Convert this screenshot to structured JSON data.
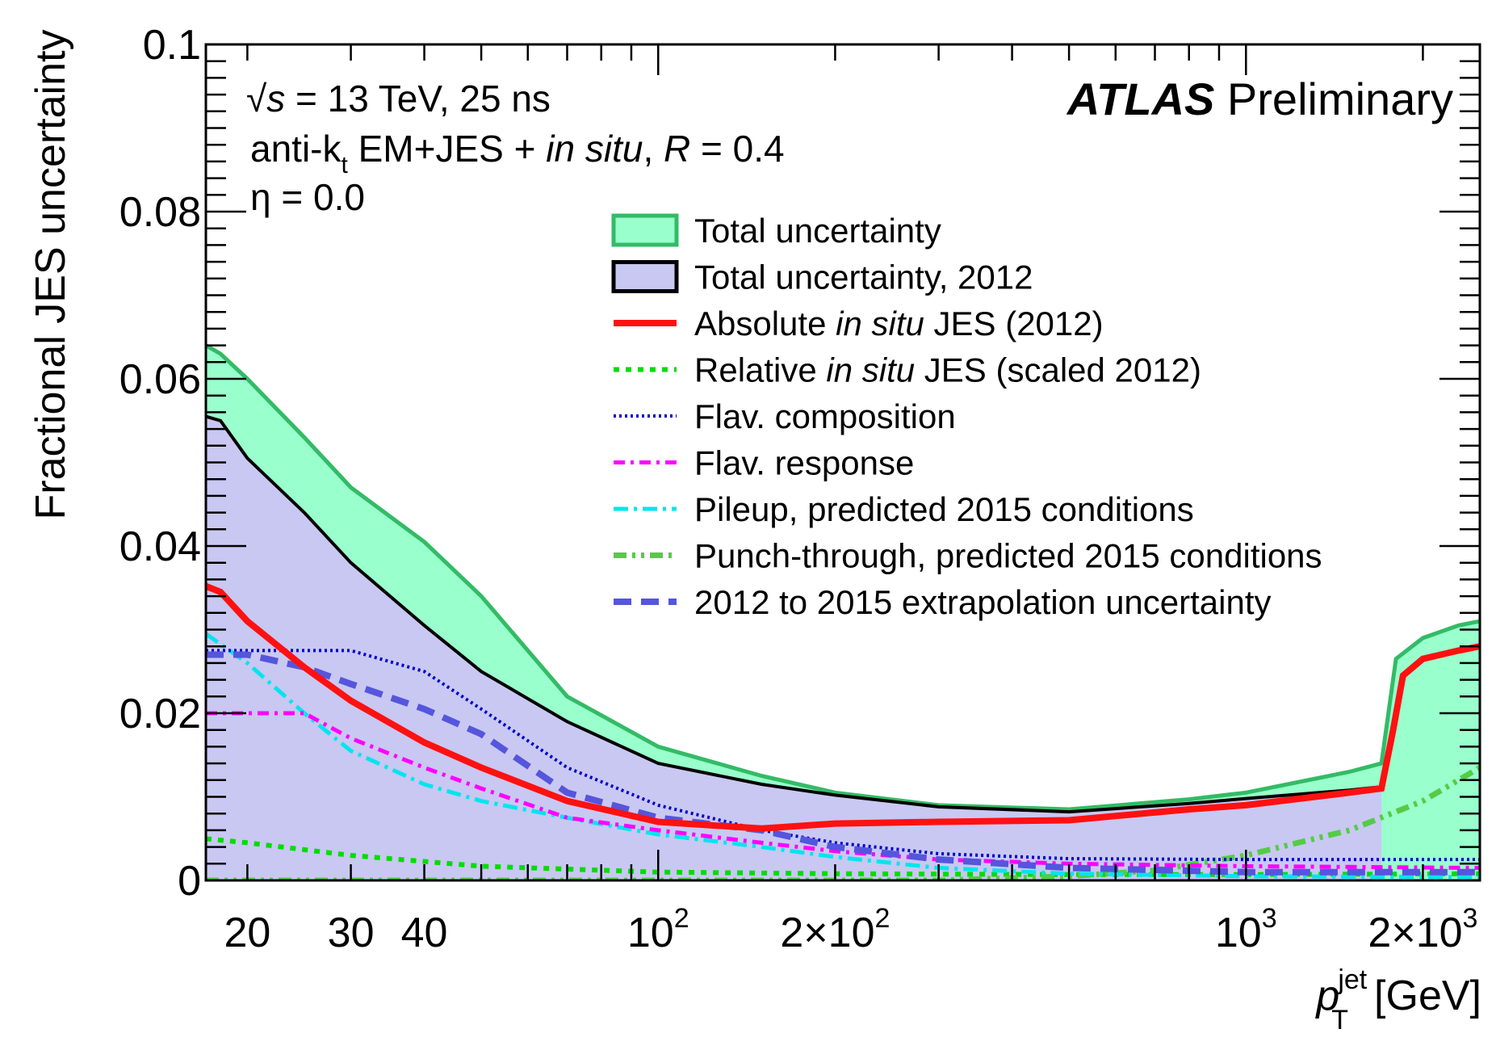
{
  "chart_data": {
    "type": "area",
    "title": "",
    "ylabel": "Fractional JES uncertainty",
    "xlabel": {
      "symbol": "p",
      "sub": "T",
      "sup": "jet",
      "unit": "[GeV]"
    },
    "x_scale": "log",
    "xlim": [
      17,
      2500
    ],
    "ylim": [
      0,
      0.1
    ],
    "y_ticks": [
      {
        "value": 0,
        "label": "0"
      },
      {
        "value": 0.02,
        "label": "0.02"
      },
      {
        "value": 0.04,
        "label": "0.04"
      },
      {
        "value": 0.06,
        "label": "0.06"
      },
      {
        "value": 0.08,
        "label": "0.08"
      },
      {
        "value": 0.1,
        "label": "0.1"
      }
    ],
    "x_tick_labels": [
      {
        "value": 20,
        "base": "20",
        "exp": ""
      },
      {
        "value": 30,
        "base": "30",
        "exp": ""
      },
      {
        "value": 40,
        "base": "40",
        "exp": ""
      },
      {
        "value": 100,
        "base": "10",
        "exp": "2"
      },
      {
        "value": 200,
        "base": "2×10",
        "exp": "2"
      },
      {
        "value": 1000,
        "base": "10",
        "exp": "3"
      },
      {
        "value": 2000,
        "base": "2×10",
        "exp": "3"
      }
    ],
    "annotations": {
      "energy_prefix": "√",
      "energy_s": "s",
      "energy_rest": " = 13 TeV, 25 ns",
      "algo_a": "anti-k",
      "algo_t": "t",
      "algo_b": " EM+JES  + ",
      "algo_insitu": "in situ",
      "algo_c": ", ",
      "algo_R": "R",
      "algo_d": " = 0.4",
      "eta": "η = 0.0",
      "atlas": "ATLAS",
      "preliminary": " Preliminary"
    },
    "legend": {
      "position": "center-right",
      "items": [
        {
          "key": "total",
          "parts": [
            [
              "Total uncertainty",
              false
            ]
          ]
        },
        {
          "key": "total2012",
          "parts": [
            [
              "Total uncertainty, 2012",
              false
            ]
          ]
        },
        {
          "key": "absolute",
          "parts": [
            [
              "Absolute ",
              false
            ],
            [
              "in situ",
              true
            ],
            [
              " JES (2012)",
              false
            ]
          ]
        },
        {
          "key": "relative",
          "parts": [
            [
              "Relative ",
              false
            ],
            [
              "in situ",
              true
            ],
            [
              " JES (scaled 2012)",
              false
            ]
          ]
        },
        {
          "key": "flavcomp",
          "parts": [
            [
              "Flav. composition",
              false
            ]
          ]
        },
        {
          "key": "flavresp",
          "parts": [
            [
              "Flav. response",
              false
            ]
          ]
        },
        {
          "key": "pileup",
          "parts": [
            [
              "Pileup, predicted 2015 conditions",
              false
            ]
          ]
        },
        {
          "key": "punch",
          "parts": [
            [
              "Punch-through, predicted 2015 conditions",
              false
            ]
          ]
        },
        {
          "key": "extrap",
          "parts": [
            [
              " 2012 to 2015 extrapolation uncertainty",
              false
            ]
          ]
        }
      ]
    },
    "series": [
      {
        "key": "total",
        "style": "area",
        "fill": "#99ffcc",
        "stroke": "#33bb66",
        "x": [
          17,
          18,
          20,
          25,
          30,
          40,
          50,
          70,
          100,
          150,
          200,
          300,
          500,
          800,
          1000,
          1500,
          1700,
          1800,
          2000,
          2300,
          2500
        ],
        "y": [
          0.064,
          0.063,
          0.06,
          0.053,
          0.047,
          0.0405,
          0.034,
          0.022,
          0.016,
          0.0125,
          0.0105,
          0.009,
          0.0085,
          0.0097,
          0.0105,
          0.013,
          0.014,
          0.0265,
          0.029,
          0.0305,
          0.031
        ]
      },
      {
        "key": "total2012",
        "style": "area",
        "fill": "#c8c8f2",
        "stroke": "#000000",
        "x": [
          17,
          18,
          20,
          25,
          30,
          40,
          50,
          70,
          100,
          150,
          200,
          300,
          500,
          800,
          1000,
          1500,
          1700
        ],
        "y": [
          0.0555,
          0.055,
          0.0505,
          0.044,
          0.038,
          0.0305,
          0.025,
          0.019,
          0.014,
          0.0115,
          0.0102,
          0.0088,
          0.0082,
          0.0092,
          0.0098,
          0.0108,
          0.0112
        ]
      },
      {
        "key": "absolute",
        "style": "solid",
        "color": "#ff1111",
        "width": 8,
        "x": [
          17,
          18,
          20,
          25,
          30,
          40,
          50,
          70,
          100,
          150,
          200,
          300,
          500,
          800,
          1000,
          1500,
          1700,
          1780,
          1850,
          2000,
          2300,
          2500
        ],
        "y": [
          0.0352,
          0.0345,
          0.031,
          0.0255,
          0.0215,
          0.0165,
          0.0135,
          0.0095,
          0.007,
          0.0062,
          0.0068,
          0.007,
          0.0072,
          0.0085,
          0.009,
          0.0105,
          0.011,
          0.018,
          0.0245,
          0.0265,
          0.0275,
          0.028
        ]
      },
      {
        "key": "relative",
        "style": "dotted",
        "color": "#00dd00",
        "width": 6,
        "dash": "7,8",
        "x": [
          17,
          20,
          30,
          50,
          100,
          200,
          500,
          1000,
          2500
        ],
        "y": [
          0.005,
          0.0045,
          0.003,
          0.0017,
          0.001,
          0.0008,
          0.0007,
          0.0007,
          0.0008
        ]
      },
      {
        "key": "flavcomp",
        "style": "dotted",
        "color": "#0000cc",
        "width": 4,
        "dash": "3,4",
        "x": [
          17,
          20,
          30,
          40,
          50,
          70,
          100,
          150,
          200,
          300,
          500,
          1000,
          2500
        ],
        "y": [
          0.0275,
          0.0275,
          0.0275,
          0.025,
          0.0205,
          0.0135,
          0.009,
          0.006,
          0.0045,
          0.0032,
          0.0026,
          0.0025,
          0.0025
        ]
      },
      {
        "key": "flavresp",
        "style": "dashdot",
        "color": "#ff00ff",
        "width": 5,
        "dash": "14,7,4,7",
        "x": [
          17,
          20,
          25,
          30,
          40,
          50,
          70,
          100,
          150,
          200,
          300,
          500,
          1000,
          2500
        ],
        "y": [
          0.02,
          0.02,
          0.02,
          0.017,
          0.0135,
          0.011,
          0.0075,
          0.006,
          0.0045,
          0.0035,
          0.0025,
          0.002,
          0.0017,
          0.0015
        ]
      },
      {
        "key": "pileup",
        "style": "dashdot",
        "color": "#00e5ee",
        "width": 5,
        "dash": "18,7,4,7",
        "x": [
          17,
          20,
          25,
          30,
          40,
          50,
          70,
          100,
          150,
          200,
          300,
          500,
          1000,
          2500
        ],
        "y": [
          0.0295,
          0.026,
          0.02,
          0.0155,
          0.0115,
          0.0095,
          0.0075,
          0.0055,
          0.004,
          0.0028,
          0.0015,
          0.0008,
          0.0005,
          0.0004
        ]
      },
      {
        "key": "punch",
        "style": "dashdotdot",
        "color": "#55cc44",
        "width": 7,
        "dash": "16,7,4,7,4,7",
        "x": [
          17,
          100,
          300,
          500,
          700,
          1000,
          1500,
          2000,
          2500
        ],
        "y": [
          0,
          0,
          0,
          0.0005,
          0.0012,
          0.003,
          0.006,
          0.0095,
          0.0135
        ]
      },
      {
        "key": "extrap",
        "style": "dashed",
        "color": "#5555dd",
        "width": 8,
        "dash": "22,12",
        "x": [
          17,
          20,
          25,
          30,
          40,
          50,
          70,
          100,
          150,
          200,
          300,
          500,
          1000,
          2500
        ],
        "y": [
          0.027,
          0.027,
          0.0255,
          0.0235,
          0.0205,
          0.0175,
          0.0105,
          0.0075,
          0.006,
          0.004,
          0.0025,
          0.0015,
          0.001,
          0.001
        ]
      }
    ]
  }
}
